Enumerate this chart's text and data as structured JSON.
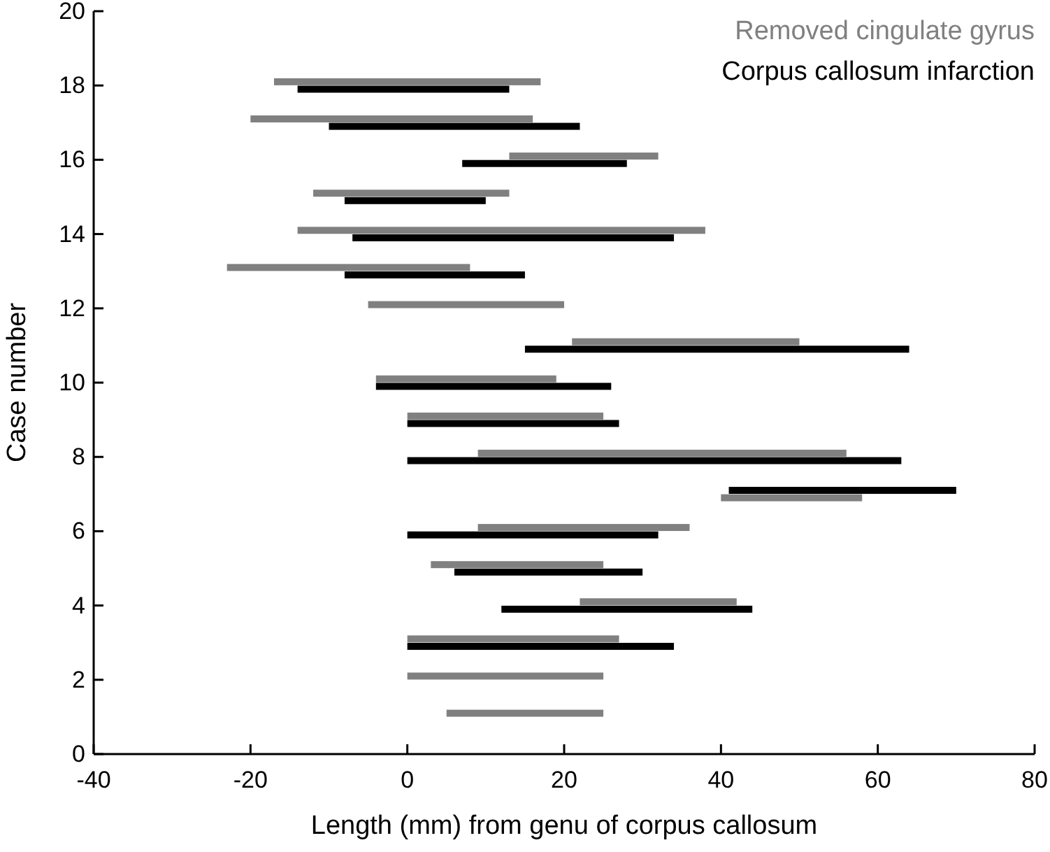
{
  "chart_data": {
    "type": "bar",
    "orientation": "horizontal",
    "xlabel": "Length (mm) from genu of corpus callosum",
    "ylabel": "Case number",
    "xlim": [
      -40,
      80
    ],
    "xticks": [
      -40,
      -20,
      0,
      20,
      40,
      60,
      80
    ],
    "ylim": [
      0,
      20
    ],
    "yticks": [
      0,
      2,
      4,
      6,
      8,
      10,
      12,
      14,
      16,
      18,
      20
    ],
    "grid": false,
    "legend": "top right",
    "series": [
      {
        "name": "Removed cingulate gyrus",
        "color": "#808080",
        "x": [
          1.1,
          2.1,
          3.1,
          4.1,
          5.1,
          6.1,
          6.9,
          8.1,
          9.1,
          10.1,
          11.1,
          12.1,
          13.1,
          14.1,
          15.1,
          16.1,
          17.1,
          18.1
        ],
        "base": [
          5,
          0,
          0,
          22,
          3,
          9,
          40,
          9,
          0,
          -4,
          21,
          -5,
          -23,
          -14,
          -12,
          13,
          -20,
          -17
        ],
        "values": [
          20,
          25,
          27,
          20,
          22,
          27,
          18,
          47,
          25,
          23,
          29,
          25,
          31,
          52,
          25,
          19,
          36,
          34
        ]
      },
      {
        "name": "Corpus callosum infarction",
        "color": "#000000",
        "x": [
          2.9,
          3.9,
          4.9,
          5.9,
          7.1,
          7.9,
          8.9,
          9.9,
          10.9,
          12.9,
          13.9,
          14.9,
          15.9,
          16.9,
          17.9
        ],
        "base": [
          0,
          12,
          6,
          0,
          41,
          0,
          0,
          -4,
          15,
          -8,
          -7,
          -8,
          7,
          -10,
          -14
        ],
        "values": [
          34,
          32,
          24,
          32,
          29,
          63,
          27,
          30,
          49,
          23,
          41,
          18,
          21,
          32,
          27
        ]
      }
    ]
  }
}
